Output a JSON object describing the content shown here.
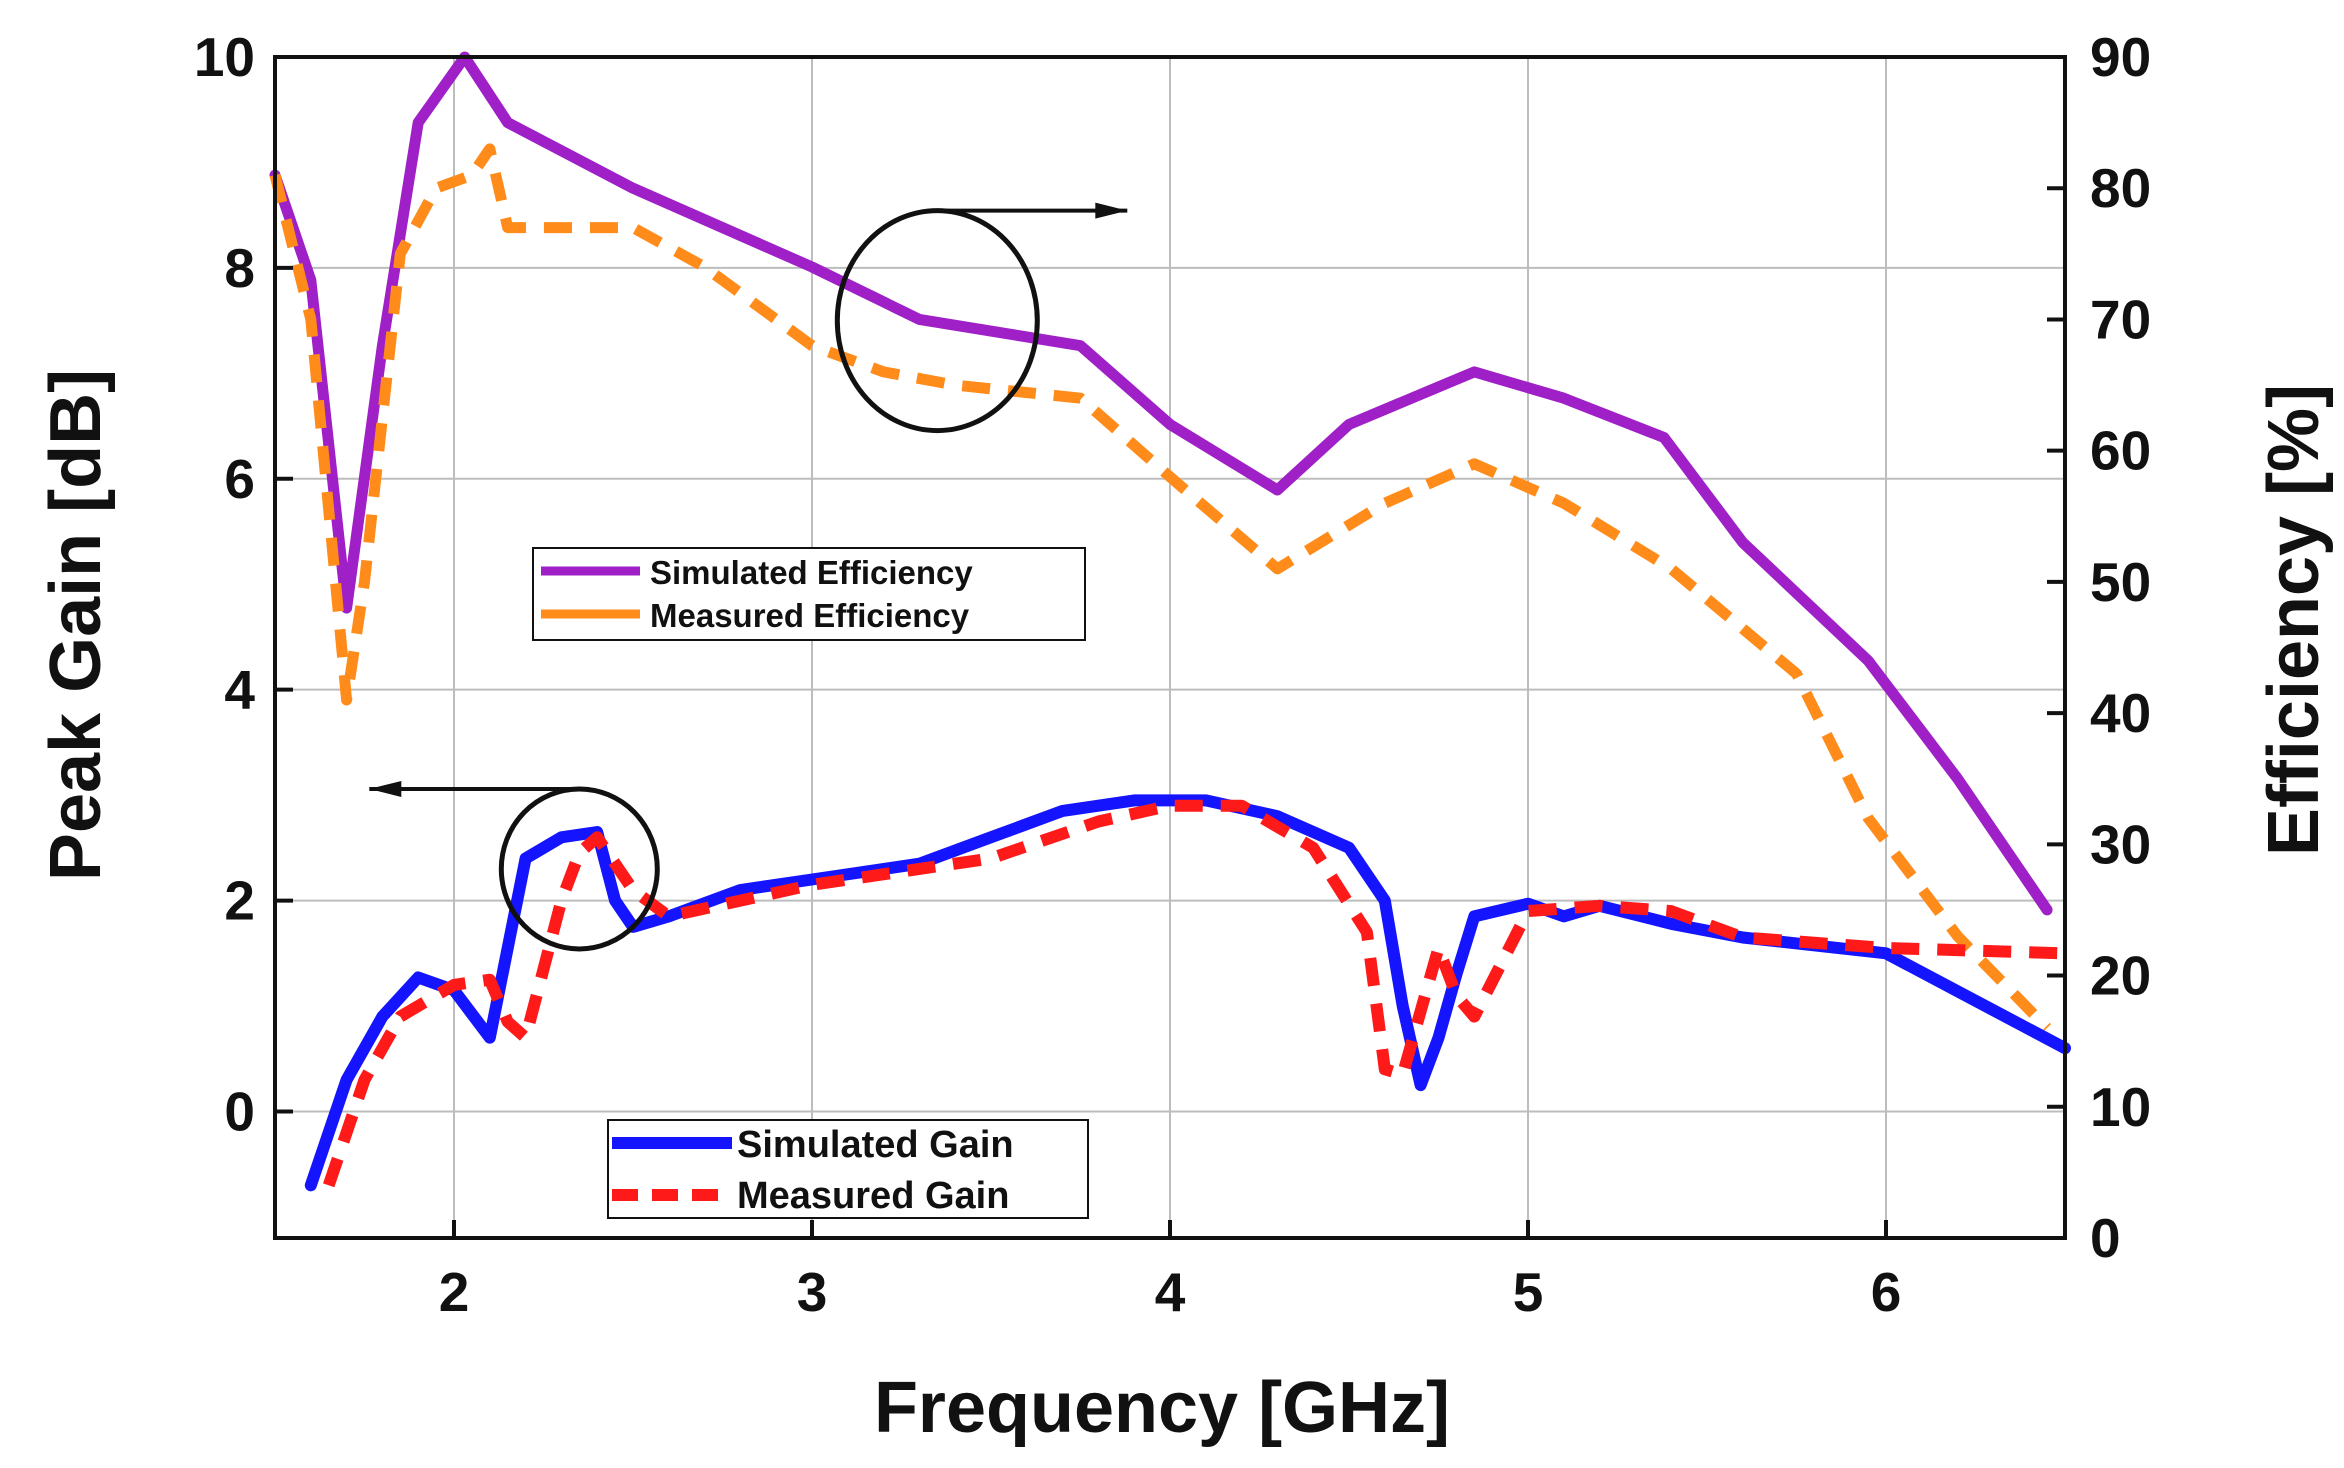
{
  "chart_data": {
    "type": "line",
    "title": "",
    "xlabel": "Frequency [GHz]",
    "ylabel": "Peak Gain [dB]",
    "y2label": "Efficiency [%]",
    "xlim": [
      1.5,
      6.5
    ],
    "ylim": [
      -1.2,
      10.0
    ],
    "y2lim": [
      0,
      90
    ],
    "x_ticks": [
      "2",
      "3",
      "4",
      "5",
      "6"
    ],
    "y_ticks": [
      "0",
      "2",
      "4",
      "6",
      "8",
      "10"
    ],
    "y2_ticks": [
      "0",
      "10",
      "20",
      "30",
      "40",
      "50",
      "60",
      "70",
      "80",
      "90"
    ],
    "grid": true,
    "colors": {
      "simulated_efficiency": "#a020c8",
      "measured_efficiency": "#ff8c1a",
      "simulated_gain": "#1414ff",
      "measured_gain": "#ff1a1a",
      "axis": "#111111",
      "grid": "#bdbdbd"
    },
    "legend_efficiency": [
      "Simulated Efficiency",
      "Measured Efficiency"
    ],
    "legend_gain": [
      "Simulated Gain",
      "Measured Gain"
    ],
    "series": [
      {
        "name": "Simulated Efficiency",
        "axis": "right",
        "color": "#a020c8",
        "dash": "solid",
        "x": [
          1.5,
          1.6,
          1.7,
          1.8,
          1.9,
          2.03,
          2.15,
          2.5,
          3.0,
          3.3,
          3.75,
          4.0,
          4.3,
          4.5,
          4.85,
          5.1,
          5.38,
          5.6,
          5.95,
          6.2,
          6.45
        ],
        "y": [
          81,
          73,
          48,
          68,
          85,
          90,
          85,
          80,
          74,
          70,
          68,
          62,
          57,
          62,
          66,
          64,
          61,
          53,
          44,
          35,
          25
        ]
      },
      {
        "name": "Measured Efficiency",
        "axis": "right",
        "color": "#ff8c1a",
        "dash": "dash",
        "x": [
          1.5,
          1.6,
          1.7,
          1.75,
          1.85,
          1.95,
          2.05,
          2.1,
          2.15,
          2.3,
          2.5,
          2.7,
          3.0,
          3.2,
          3.4,
          3.75,
          4.0,
          4.3,
          4.6,
          4.85,
          5.1,
          5.4,
          5.75,
          5.95,
          6.2,
          6.45
        ],
        "y": [
          81,
          70,
          41,
          50,
          75,
          80,
          81,
          83,
          77,
          77,
          77,
          74,
          68,
          66,
          65,
          64,
          58,
          51,
          56,
          59,
          56,
          51,
          43,
          32,
          23,
          16
        ]
      },
      {
        "name": "Simulated Gain",
        "axis": "left",
        "color": "#1414ff",
        "dash": "solid",
        "x": [
          1.6,
          1.7,
          1.8,
          1.9,
          2.0,
          2.1,
          2.2,
          2.3,
          2.4,
          2.45,
          2.5,
          2.6,
          2.8,
          3.0,
          3.3,
          3.5,
          3.7,
          3.9,
          4.1,
          4.3,
          4.5,
          4.6,
          4.65,
          4.7,
          4.75,
          4.8,
          4.85,
          5.0,
          5.1,
          5.2,
          5.4,
          5.6,
          6.0,
          6.5
        ],
        "y": [
          -0.7,
          0.3,
          0.9,
          1.27,
          1.15,
          0.7,
          2.4,
          2.6,
          2.65,
          2.0,
          1.75,
          1.85,
          2.1,
          2.2,
          2.35,
          2.6,
          2.85,
          2.95,
          2.95,
          2.8,
          2.5,
          2.0,
          1.0,
          0.25,
          0.7,
          1.3,
          1.85,
          1.97,
          1.85,
          1.95,
          1.78,
          1.65,
          1.5,
          0.6
        ]
      },
      {
        "name": "Measured Gain",
        "axis": "left",
        "color": "#ff1a1a",
        "dash": "dash",
        "x": [
          1.65,
          1.75,
          1.85,
          2.0,
          2.1,
          2.15,
          2.2,
          2.3,
          2.35,
          2.4,
          2.5,
          2.6,
          2.8,
          3.0,
          3.3,
          3.5,
          3.8,
          4.0,
          4.2,
          4.4,
          4.55,
          4.6,
          4.65,
          4.75,
          4.8,
          4.85,
          5.0,
          5.2,
          5.4,
          5.6,
          6.0,
          6.5
        ],
        "y": [
          -0.7,
          0.3,
          0.9,
          1.2,
          1.25,
          0.85,
          0.7,
          2.0,
          2.45,
          2.6,
          2.1,
          1.85,
          2.0,
          2.15,
          2.3,
          2.4,
          2.75,
          2.9,
          2.9,
          2.5,
          1.7,
          0.4,
          0.35,
          1.55,
          1.1,
          0.9,
          1.9,
          1.95,
          1.9,
          1.65,
          1.55,
          1.5
        ]
      }
    ],
    "annotations": [
      {
        "type": "circle-arrow",
        "target": "efficiency",
        "direction": "right",
        "cx": 3.35,
        "cy": 7.5
      },
      {
        "type": "circle-arrow",
        "target": "gain",
        "direction": "left",
        "cx": 2.35,
        "cy": 2.3
      }
    ]
  }
}
